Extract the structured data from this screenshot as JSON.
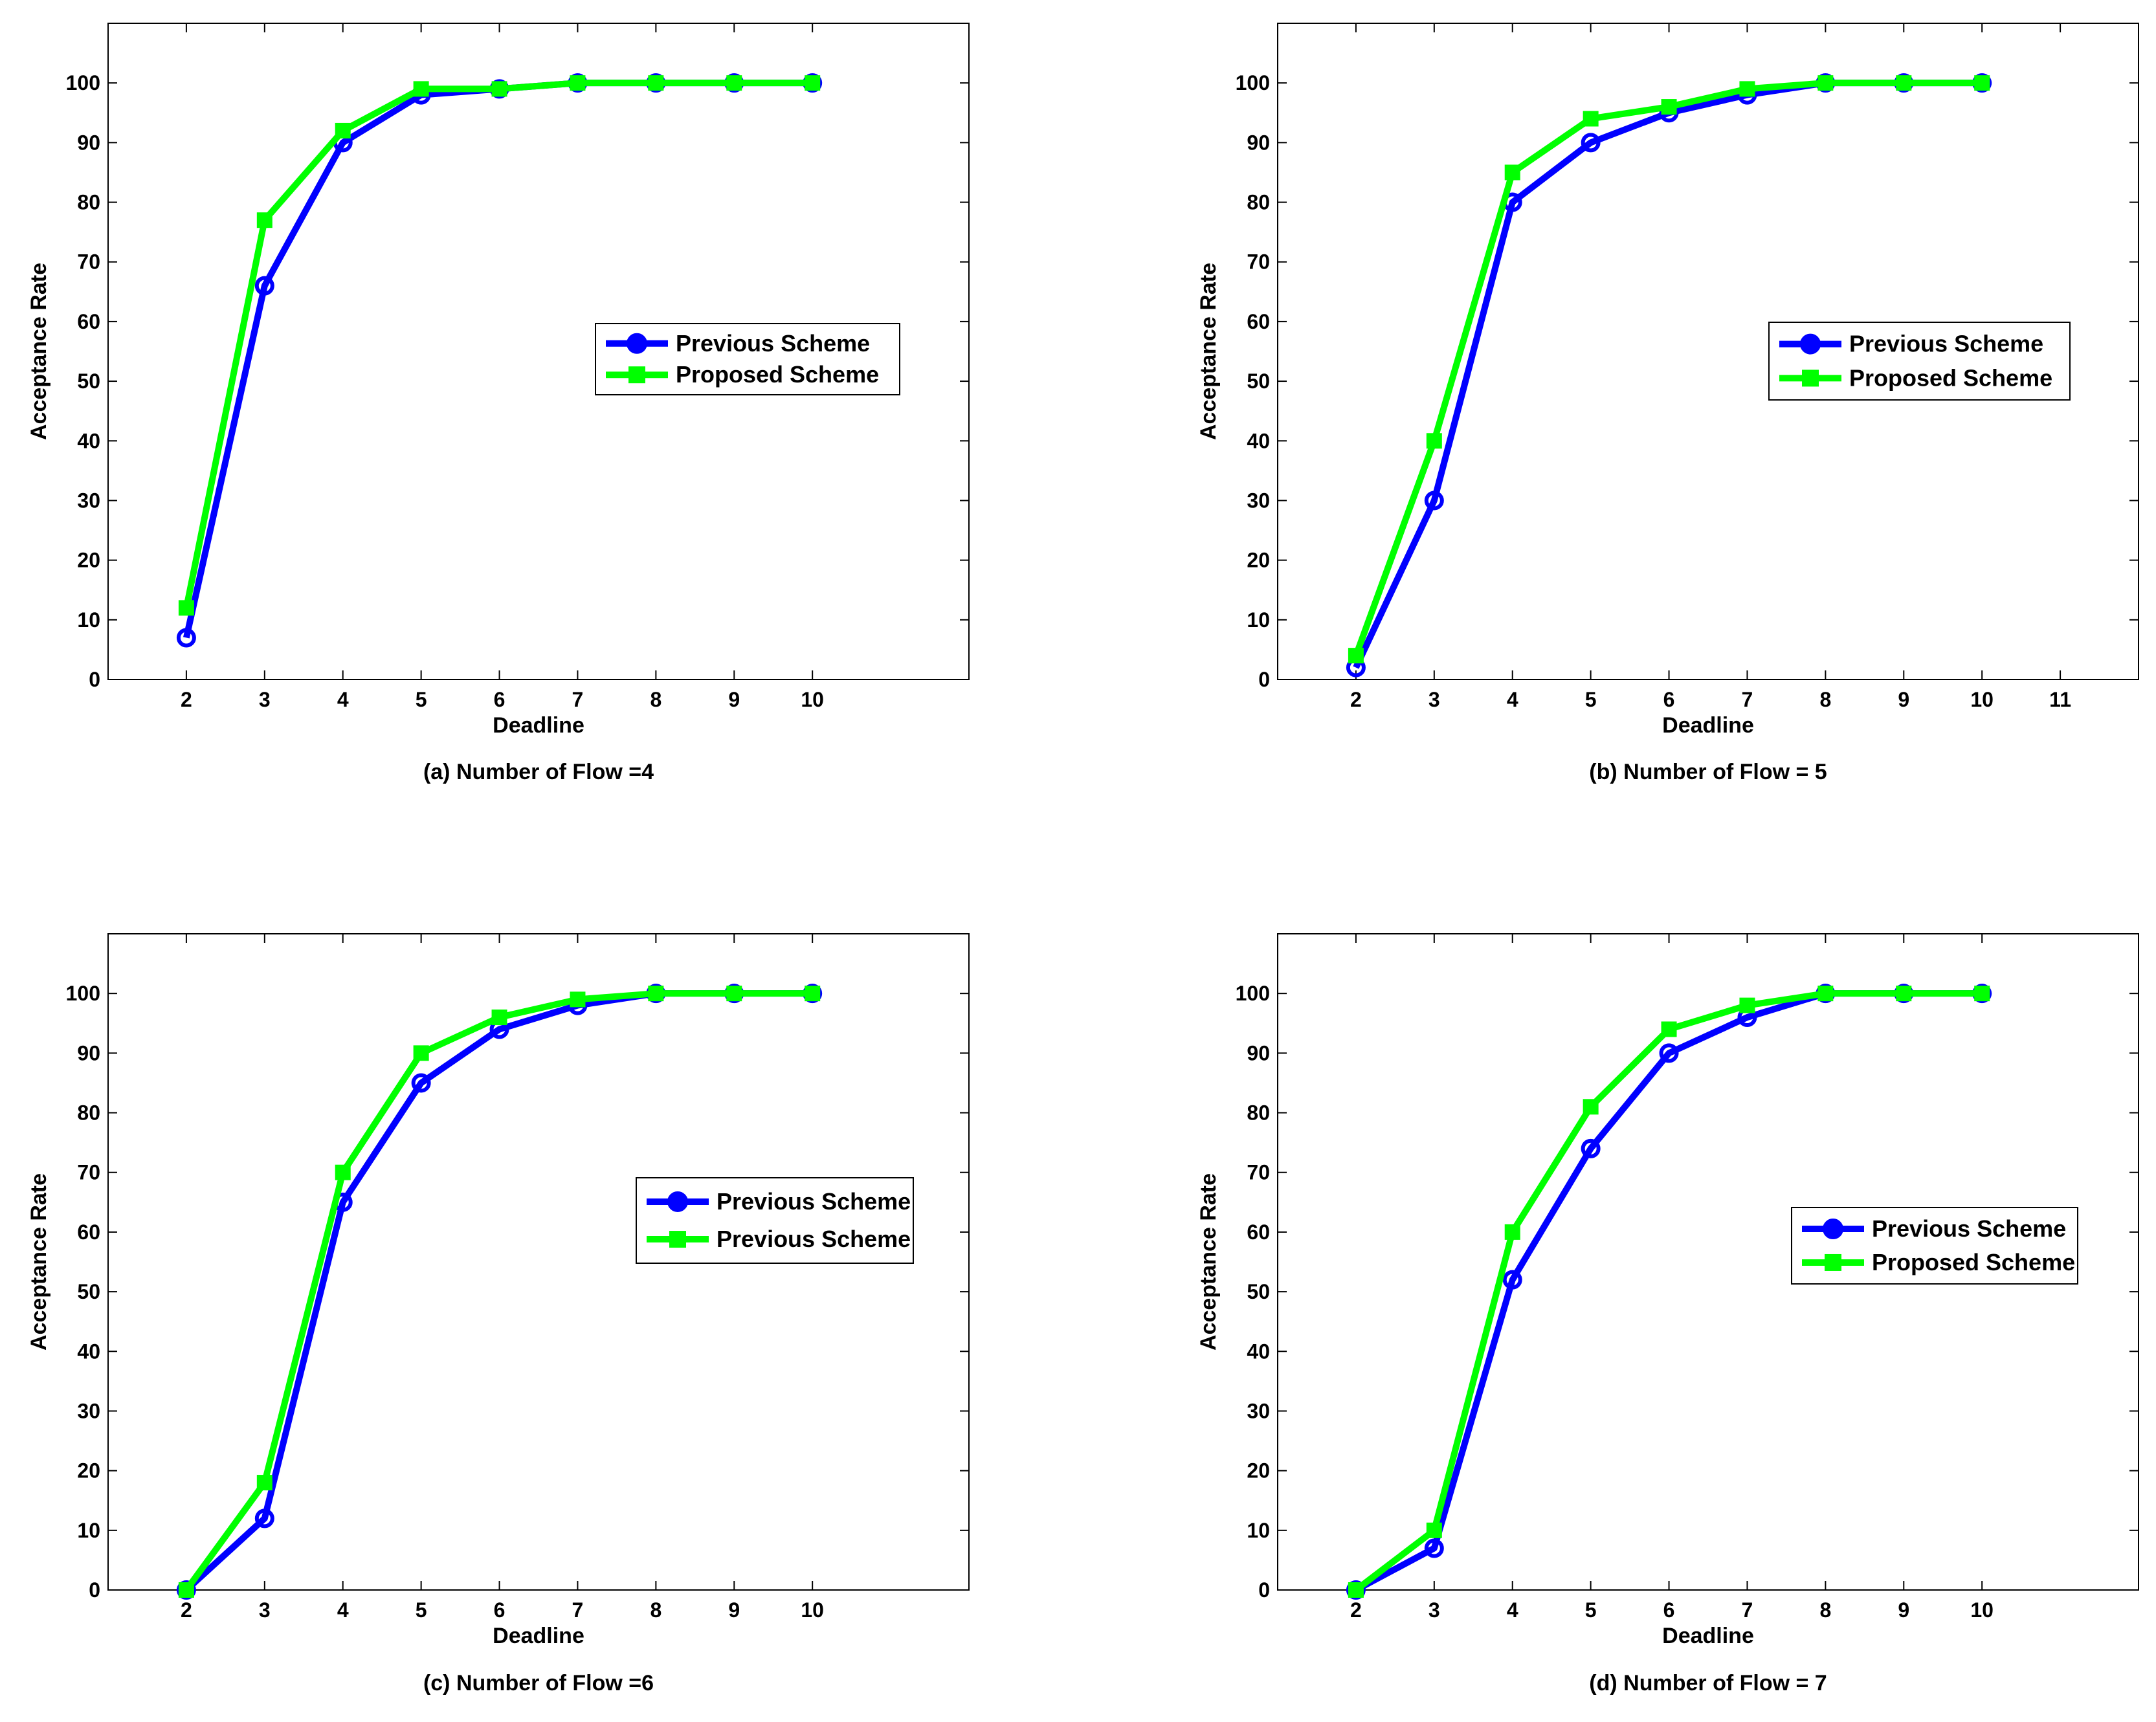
{
  "colors": {
    "previous": "#0000ff",
    "proposed": "#00ff00",
    "axis": "#000000",
    "background": "#ffffff"
  },
  "chart_data": [
    {
      "type": "line",
      "caption": "(a) Number of Flow =4",
      "xlabel": "Deadline",
      "ylabel": "Acceptance Rate",
      "xlim": [
        1,
        12
      ],
      "ylim": [
        0,
        110
      ],
      "xticks": [
        2,
        3,
        4,
        5,
        6,
        7,
        8,
        9,
        10
      ],
      "yticks": [
        0,
        10,
        20,
        30,
        40,
        50,
        60,
        70,
        80,
        90,
        100
      ],
      "legend_position": "center-right",
      "series": [
        {
          "name": "Previous Scheme",
          "marker": "circle",
          "color": "#0000ff",
          "x": [
            2,
            3,
            4,
            5,
            6,
            7,
            8,
            9,
            10
          ],
          "values": [
            7,
            66,
            90,
            98,
            99,
            100,
            100,
            100,
            100
          ]
        },
        {
          "name": "Proposed Scheme",
          "marker": "square",
          "color": "#00ff00",
          "x": [
            2,
            3,
            4,
            5,
            6,
            7,
            8,
            9,
            10
          ],
          "values": [
            12,
            77,
            92,
            99,
            99,
            100,
            100,
            100,
            100
          ]
        }
      ]
    },
    {
      "type": "line",
      "caption": "(b) Number of Flow = 5",
      "xlabel": "Deadline",
      "ylabel": "Acceptance Rate",
      "xlim": [
        1,
        12
      ],
      "ylim": [
        0,
        110
      ],
      "xticks": [
        2,
        3,
        4,
        5,
        6,
        7,
        8,
        9,
        10,
        11
      ],
      "yticks": [
        0,
        10,
        20,
        30,
        40,
        50,
        60,
        70,
        80,
        90,
        100
      ],
      "legend_position": "center-right",
      "series": [
        {
          "name": "Previous Scheme",
          "marker": "circle",
          "color": "#0000ff",
          "x": [
            2,
            3,
            4,
            5,
            6,
            7,
            8,
            9,
            10
          ],
          "values": [
            2,
            30,
            80,
            90,
            95,
            98,
            100,
            100,
            100
          ]
        },
        {
          "name": "Proposed Scheme",
          "marker": "square",
          "color": "#00ff00",
          "x": [
            2,
            3,
            4,
            5,
            6,
            7,
            8,
            9,
            10
          ],
          "values": [
            4,
            40,
            85,
            94,
            96,
            99,
            100,
            100,
            100
          ]
        }
      ]
    },
    {
      "type": "line",
      "caption": "(c) Number of Flow =6",
      "xlabel": "Deadline",
      "ylabel": "Acceptance Rate",
      "xlim": [
        1,
        12
      ],
      "ylim": [
        0,
        110
      ],
      "xticks": [
        2,
        3,
        4,
        5,
        6,
        7,
        8,
        9,
        10
      ],
      "yticks": [
        0,
        10,
        20,
        30,
        40,
        50,
        60,
        70,
        80,
        90,
        100
      ],
      "legend_position": "center-right",
      "series": [
        {
          "name": "Previous Scheme",
          "marker": "circle",
          "color": "#0000ff",
          "x": [
            2,
            3,
            4,
            5,
            6,
            7,
            8,
            9,
            10
          ],
          "values": [
            0,
            12,
            65,
            85,
            94,
            98,
            100,
            100,
            100
          ]
        },
        {
          "name": "Previous Scheme",
          "marker": "square",
          "color": "#00ff00",
          "x": [
            2,
            3,
            4,
            5,
            6,
            7,
            8,
            9,
            10
          ],
          "values": [
            0,
            18,
            70,
            90,
            96,
            99,
            100,
            100,
            100
          ]
        }
      ]
    },
    {
      "type": "line",
      "caption": "(d) Number of Flow = 7",
      "xlabel": "Deadline",
      "ylabel": "Acceptance Rate",
      "xlim": [
        1,
        12
      ],
      "ylim": [
        0,
        110
      ],
      "xticks": [
        2,
        3,
        4,
        5,
        6,
        7,
        8,
        9,
        10
      ],
      "yticks": [
        0,
        10,
        20,
        30,
        40,
        50,
        60,
        70,
        80,
        90,
        100
      ],
      "legend_position": "center-right",
      "series": [
        {
          "name": "Previous Scheme",
          "marker": "circle",
          "color": "#0000ff",
          "x": [
            2,
            3,
            4,
            5,
            6,
            7,
            8,
            9,
            10
          ],
          "values": [
            0,
            7,
            52,
            74,
            90,
            96,
            100,
            100,
            100
          ]
        },
        {
          "name": "Proposed Scheme",
          "marker": "square",
          "color": "#00ff00",
          "x": [
            2,
            3,
            4,
            5,
            6,
            7,
            8,
            9,
            10
          ],
          "values": [
            0,
            10,
            60,
            81,
            94,
            98,
            100,
            100,
            100
          ]
        }
      ]
    }
  ]
}
